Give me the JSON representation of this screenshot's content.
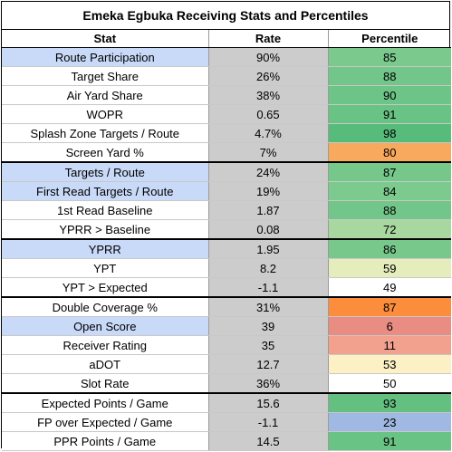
{
  "title": "Emeka Egbuka Receiving Stats and Percentiles",
  "headers": {
    "stat": "Stat",
    "rate": "Rate",
    "percentile": "Percentile"
  },
  "rows": [
    {
      "stat": "Route Participation",
      "rate": "90%",
      "percentile": "85",
      "stat_bg": "#c9daf8",
      "pct_bg": "#7bc98c",
      "sep": false
    },
    {
      "stat": "Target Share",
      "rate": "26%",
      "percentile": "88",
      "stat_bg": "#ffffff",
      "pct_bg": "#72c689",
      "sep": false
    },
    {
      "stat": "Air Yard Share",
      "rate": "38%",
      "percentile": "90",
      "stat_bg": "#ffffff",
      "pct_bg": "#6cc486",
      "sep": false
    },
    {
      "stat": "WOPR",
      "rate": "0.65",
      "percentile": "91",
      "stat_bg": "#ffffff",
      "pct_bg": "#69c384",
      "sep": false
    },
    {
      "stat": "Splash Zone Targets / Route",
      "rate": "4.7%",
      "percentile": "98",
      "stat_bg": "#ffffff",
      "pct_bg": "#57bb7b",
      "sep": false
    },
    {
      "stat": "Screen Yard %",
      "rate": "7%",
      "percentile": "80",
      "stat_bg": "#ffffff",
      "pct_bg": "#f9a95e",
      "sep": true
    },
    {
      "stat": "Targets / Route",
      "rate": "24%",
      "percentile": "87",
      "stat_bg": "#c9daf8",
      "pct_bg": "#75c78a",
      "sep": false
    },
    {
      "stat": "First Read Targets / Route",
      "rate": "19%",
      "percentile": "84",
      "stat_bg": "#c9daf8",
      "pct_bg": "#7dca8e",
      "sep": false
    },
    {
      "stat": "1st Read Baseline",
      "rate": "1.87",
      "percentile": "88",
      "stat_bg": "#ffffff",
      "pct_bg": "#72c689",
      "sep": false
    },
    {
      "stat": "YPRR > Baseline",
      "rate": "0.08",
      "percentile": "72",
      "stat_bg": "#ffffff",
      "pct_bg": "#a8d8a0",
      "sep": true
    },
    {
      "stat": "YPRR",
      "rate": "1.95",
      "percentile": "86",
      "stat_bg": "#c9daf8",
      "pct_bg": "#78c88b",
      "sep": false
    },
    {
      "stat": "YPT",
      "rate": "8.2",
      "percentile": "59",
      "stat_bg": "#ffffff",
      "pct_bg": "#e6edbd",
      "sep": false
    },
    {
      "stat": "YPT > Expected",
      "rate": "-1.1",
      "percentile": "49",
      "stat_bg": "#ffffff",
      "pct_bg": "#ffffff",
      "sep": true
    },
    {
      "stat": "Double Coverage %",
      "rate": "31%",
      "percentile": "87",
      "stat_bg": "#ffffff",
      "pct_bg": "#fb8d3c",
      "sep": false
    },
    {
      "stat": "Open Score",
      "rate": "39",
      "percentile": "6",
      "stat_bg": "#c9daf8",
      "pct_bg": "#e98c82",
      "sep": false
    },
    {
      "stat": "Receiver Rating",
      "rate": "35",
      "percentile": "11",
      "stat_bg": "#ffffff",
      "pct_bg": "#f2a18e",
      "sep": false
    },
    {
      "stat": "aDOT",
      "rate": "12.7",
      "percentile": "53",
      "stat_bg": "#ffffff",
      "pct_bg": "#fbf1c4",
      "sep": false
    },
    {
      "stat": "Slot Rate",
      "rate": "36%",
      "percentile": "50",
      "stat_bg": "#ffffff",
      "pct_bg": "#ffffff",
      "sep": true
    },
    {
      "stat": "Expected Points / Game",
      "rate": "15.6",
      "percentile": "93",
      "stat_bg": "#ffffff",
      "pct_bg": "#63c081",
      "sep": false
    },
    {
      "stat": "FP over Expected / Game",
      "rate": "-1.1",
      "percentile": "23",
      "stat_bg": "#ffffff",
      "pct_bg": "#9fb9e3",
      "sep": false
    },
    {
      "stat": "PPR Points / Game",
      "rate": "14.5",
      "percentile": "91",
      "stat_bg": "#ffffff",
      "pct_bg": "#69c384",
      "sep": false
    }
  ],
  "colors": {
    "rate_cell": "#cccccc",
    "highlight_stat": "#c9daf8",
    "border": "#000000"
  }
}
